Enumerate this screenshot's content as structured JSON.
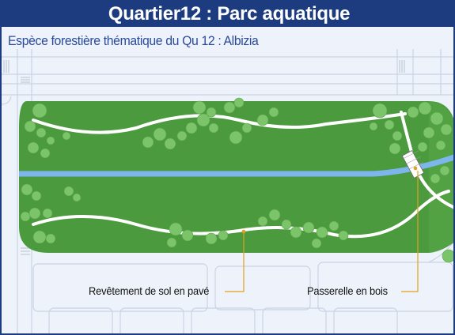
{
  "title": "Quartier12 : Parc aquatique",
  "subtitle": "Espèce forestière thématique du Qu 12 : Albizia",
  "labels": {
    "paving": "Revêtement de sol en pavé",
    "footbridge": "Passerelle en bois"
  },
  "colors": {
    "title_bg": "#1d3c80",
    "lawn": "#4b9a3e",
    "tree": "#7cc46a",
    "water": "#7db6ec",
    "path": "#ffffff",
    "leader": "#e0a020"
  }
}
